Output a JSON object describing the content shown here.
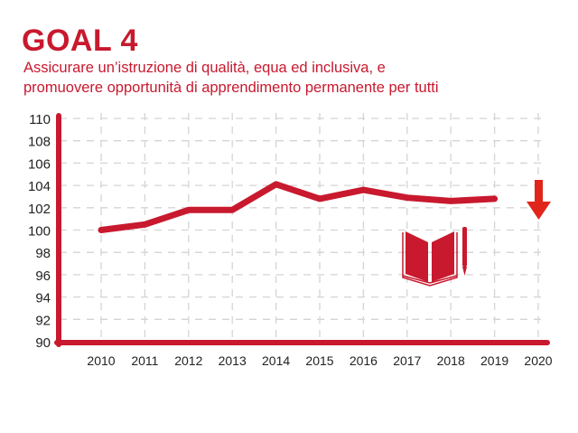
{
  "chart_data": {
    "type": "line",
    "title": "GOAL 4",
    "subtitle": [
      "Assicurare un’istruzione di qualità, equa ed inclusiva, e",
      "promuovere opportunità di apprendimento permanente per tutti"
    ],
    "categories": [
      "2010",
      "2011",
      "2012",
      "2013",
      "2014",
      "2015",
      "2016",
      "2017",
      "2018",
      "2019",
      "2020"
    ],
    "series": [
      {
        "name": "Goal 4",
        "values": [
          100.0,
          100.5,
          101.8,
          101.8,
          104.1,
          102.8,
          103.6,
          102.9,
          102.6,
          102.8,
          null
        ]
      }
    ],
    "yticks": [
      90,
      92,
      94,
      96,
      98,
      100,
      102,
      104,
      106,
      108,
      110
    ],
    "ylim": [
      90,
      110
    ],
    "grid": true,
    "trend": "down",
    "icon": "book-pencil-icon",
    "color": "#c8192e",
    "arrow_color": "#e0261b"
  }
}
